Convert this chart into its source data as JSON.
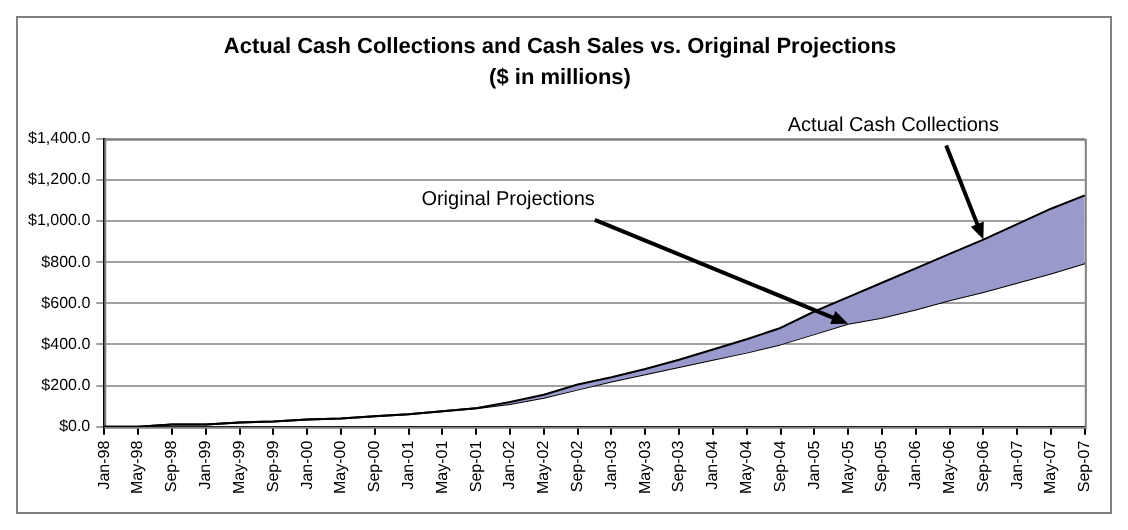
{
  "chart_data": {
    "type": "line",
    "title": "Actual Cash Collections and Cash Sales vs. Original Projections",
    "subtitle": "($ in millions)",
    "categories": [
      "Jan-98",
      "May-98",
      "Sep-98",
      "Jan-99",
      "May-99",
      "Sep-99",
      "Jan-00",
      "May-00",
      "Sep-00",
      "Jan-01",
      "May-01",
      "Sep-01",
      "Jan-02",
      "May-02",
      "Sep-02",
      "Jan-03",
      "May-03",
      "Sep-03",
      "Jan-04",
      "May-04",
      "Sep-04",
      "Jan-05",
      "May-05",
      "Sep-05",
      "Jan-06",
      "May-06",
      "Sep-06",
      "Jan-07",
      "May-07",
      "Sep-07"
    ],
    "series": [
      {
        "type": "area",
        "color": "#9999cc",
        "values": [
          0,
          0,
          10,
          10,
          20,
          25,
          35,
          40,
          50,
          60,
          75,
          90,
          120,
          155,
          205,
          240,
          280,
          325,
          375,
          425,
          480,
          560,
          630,
          700,
          770,
          840,
          910,
          985,
          1060,
          1125
        ]
      },
      {
        "type": "line",
        "color": "#000000",
        "values": [
          0,
          0,
          10,
          10,
          20,
          25,
          35,
          40,
          50,
          60,
          75,
          90,
          110,
          140,
          180,
          220,
          255,
          290,
          325,
          360,
          400,
          450,
          500,
          530,
          570,
          615,
          655,
          700,
          745,
          795
        ]
      }
    ],
    "ylim": [
      0,
      1400
    ],
    "yticks": [
      {
        "value": 0,
        "label": "$0.0"
      },
      {
        "value": 200,
        "label": "$200.0"
      },
      {
        "value": 400,
        "label": "$400.0"
      },
      {
        "value": 600,
        "label": "$600.0"
      },
      {
        "value": 800,
        "label": "$800.0"
      },
      {
        "value": 1000,
        "label": "$1,000.0"
      },
      {
        "value": 1200,
        "label": "$1,200.0"
      },
      {
        "value": 1400,
        "label": "$1,400.0"
      }
    ],
    "grid": "y",
    "legend": false,
    "marker": "none",
    "line_style": "solid",
    "annotations": [
      {
        "text": "Actual Cash Collections",
        "x": "Sep-06",
        "y": 910
      },
      {
        "text": "Original Projections",
        "x": "May-05",
        "y": 500
      }
    ]
  }
}
